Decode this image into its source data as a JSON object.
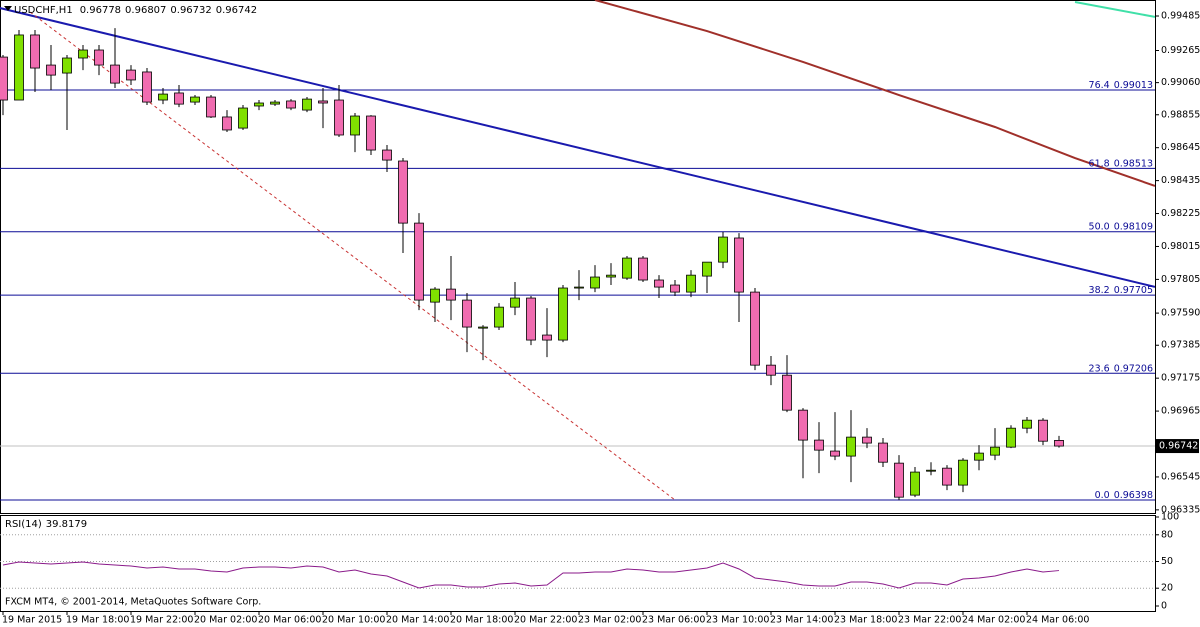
{
  "chart_data": [
    {
      "type": "candlestick",
      "title": "USDCHF,H1",
      "categories": [
        "19 Mar 2015",
        null,
        null,
        null,
        "19 Mar 18:00",
        null,
        null,
        null,
        "19 Mar 22:00",
        null,
        null,
        null,
        "20 Mar 02:00",
        null,
        null,
        null,
        "20 Mar 06:00",
        null,
        null,
        null,
        "20 Mar 10:00",
        null,
        null,
        null,
        "20 Mar 14:00",
        null,
        null,
        null,
        "20 Mar 18:00",
        null,
        null,
        null,
        "20 Mar 22:00",
        null,
        null,
        null,
        "23 Mar 02:00",
        null,
        null,
        null,
        "23 Mar 06:00",
        null,
        null,
        null,
        "23 Mar 10:00",
        null,
        null,
        null,
        "23 Mar 14:00",
        null,
        null,
        null,
        "23 Mar 18:00",
        null,
        null,
        null,
        "23 Mar 22:00",
        null,
        null,
        null,
        "24 Mar 02:00",
        null,
        null,
        null,
        "24 Mar 06:00",
        null,
        null
      ],
      "open": [
        0.99223,
        0.98949,
        0.99364,
        0.99172,
        0.99121,
        0.99217,
        0.99268,
        0.99172,
        0.9914,
        0.99128,
        0.98949,
        0.98994,
        0.98936,
        0.98968,
        0.98841,
        0.9877,
        0.98911,
        0.98923,
        0.98943,
        0.98885,
        0.98943,
        0.98949,
        0.98726,
        0.98847,
        0.9863,
        0.9856,
        0.98164,
        0.9766,
        0.97743,
        0.97673,
        0.97494,
        0.97501,
        0.97628,
        0.97686,
        0.9745,
        0.97418,
        0.9775,
        0.9775,
        0.9782,
        0.97813,
        0.97941,
        0.97801,
        0.97769,
        0.97724,
        0.97826,
        0.97915,
        0.98069,
        0.97724,
        0.97258,
        0.97194,
        0.96971,
        0.9678,
        0.9671,
        0.96678,
        0.96799,
        0.96761,
        0.96633,
        0.96429,
        0.96588,
        0.96601,
        0.96493,
        0.96652,
        0.96684,
        0.96735,
        0.96856,
        0.96907,
        0.96778
      ],
      "high": [
        0.99236,
        0.99396,
        0.99396,
        0.993,
        0.99236,
        0.993,
        0.993,
        0.99408,
        0.99172,
        0.99153,
        0.99026,
        0.99045,
        0.98981,
        0.98981,
        0.98885,
        0.98917,
        0.98949,
        0.98949,
        0.98955,
        0.98968,
        0.99026,
        0.99045,
        0.98866,
        0.98853,
        0.98662,
        0.98579,
        0.98228,
        0.97756,
        0.97954,
        0.97718,
        0.97513,
        0.97654,
        0.97788,
        0.97699,
        0.97622,
        0.97769,
        0.97864,
        0.97896,
        0.97909,
        0.97954,
        0.97954,
        0.97832,
        0.97801,
        0.97864,
        0.97915,
        0.98107,
        0.981,
        0.9775,
        0.97316,
        0.97322,
        0.96984,
        0.96895,
        0.96958,
        0.96971,
        0.96856,
        0.96793,
        0.96684,
        0.96608,
        0.96639,
        0.9662,
        0.96665,
        0.96748,
        0.96856,
        0.96875,
        0.96927,
        0.9692,
        0.96807
      ],
      "low": [
        0.98853,
        0.98949,
        0.99,
        0.99013,
        0.98758,
        0.9914,
        0.99108,
        0.99026,
        0.99045,
        0.98917,
        0.98923,
        0.98904,
        0.98917,
        0.98834,
        0.98745,
        0.98758,
        0.98885,
        0.98911,
        0.98885,
        0.98872,
        0.9877,
        0.98713,
        0.98617,
        0.98598,
        0.9849,
        0.97973,
        0.97609,
        0.97533,
        0.97545,
        0.97341,
        0.9729,
        0.97482,
        0.97577,
        0.97386,
        0.97309,
        0.97405,
        0.97673,
        0.97724,
        0.97769,
        0.97801,
        0.97788,
        0.97686,
        0.97699,
        0.97692,
        0.97718,
        0.97877,
        0.97533,
        0.97226,
        0.97131,
        0.96958,
        0.96537,
        0.96569,
        0.96652,
        0.96512,
        0.96729,
        0.96608,
        0.96397,
        0.96416,
        0.96556,
        0.96461,
        0.96448,
        0.96588,
        0.96652,
        0.96729,
        0.96824,
        0.96748,
        0.96732
      ],
      "close": [
        0.98949,
        0.99364,
        0.99153,
        0.99108,
        0.99217,
        0.99268,
        0.99172,
        0.99057,
        0.99077,
        0.98936,
        0.98987,
        0.98923,
        0.98968,
        0.98841,
        0.98758,
        0.98898,
        0.9893,
        0.98936,
        0.98898,
        0.98955,
        0.9893,
        0.98726,
        0.98847,
        0.9863,
        0.98566,
        0.98164,
        0.97673,
        0.97743,
        0.97673,
        0.97501,
        0.97501,
        0.97628,
        0.97686,
        0.97418,
        0.97418,
        0.9775,
        0.97756,
        0.9782,
        0.97832,
        0.97941,
        0.97801,
        0.97756,
        0.97724,
        0.97832,
        0.97915,
        0.98075,
        0.97724,
        0.97258,
        0.97194,
        0.96971,
        0.9678,
        0.96716,
        0.96678,
        0.96799,
        0.96761,
        0.96639,
        0.96416,
        0.96576,
        0.96588,
        0.96493,
        0.96652,
        0.96697,
        0.96735,
        0.96856,
        0.96907,
        0.96773,
        0.96742
      ],
      "up_color": "#80e000",
      "down_color": "#f06cb0",
      "wick_color": "#000000",
      "ylim": [
        0.96315,
        0.99587
      ],
      "yticks": [
        0.99485,
        0.99265,
        {
          "value": 0.9906,
          "label": "0.99060"
        },
        0.98855,
        0.98645,
        0.98435,
        0.98225,
        0.98015,
        0.97805,
        {
          "value": 0.9759,
          "label": "0.97590"
        },
        0.97385,
        0.97175,
        0.96965,
        0.96545,
        0.96335
      ],
      "fib_color": "#0c0c96",
      "fib_levels": [
        {
          "label": "76.4",
          "value": 0.99013
        },
        {
          "label": "61.8",
          "value": 0.98513
        },
        {
          "label": "50.0",
          "value": 0.98109
        },
        {
          "label": "38.2",
          "value": 0.97705
        },
        {
          "label": "23.6",
          "value": 0.97206
        },
        {
          "label": "0.0",
          "value": 0.96398
        }
      ],
      "overlays": [
        {
          "color": "#1a1aae",
          "x": [
            -0.2,
            72
          ],
          "values": [
            0.99536,
            0.97757
          ],
          "dashed": false
        },
        {
          "color": "#a0302a",
          "x": [
            37,
            44,
            50,
            56,
            62,
            67,
            72
          ],
          "values": [
            0.99587,
            0.99389,
            0.99192,
            0.98981,
            0.98777,
            0.98579,
            0.98401
          ],
          "dashed": false
        },
        {
          "color": "#40e0a8",
          "x": [
            67,
            72
          ],
          "values": [
            0.99574,
            0.99479
          ],
          "dashed": false
        },
        {
          "color": "#c83232",
          "x": [
            1.7,
            42
          ],
          "values": [
            0.9951,
            0.96398
          ],
          "dashed": true
        }
      ],
      "price_line_color": "#c0c0c0"
    },
    {
      "type": "line",
      "title": "RSI(14)",
      "color": "#8a1a8a",
      "values": [
        46.1,
        49.4,
        48.3,
        47.2,
        48.3,
        49.4,
        47.2,
        46.1,
        44.9,
        42.7,
        43.8,
        41.6,
        41.6,
        39.3,
        38.2,
        42.7,
        43.8,
        43.8,
        42.7,
        44.9,
        43.8,
        38.2,
        40.4,
        36.0,
        33.7,
        27.0,
        20.2,
        23.6,
        23.6,
        21.3,
        21.3,
        24.7,
        25.8,
        22.5,
        23.6,
        37.1,
        37.1,
        38.2,
        38.2,
        41.6,
        40.4,
        38.2,
        38.2,
        40.4,
        42.7,
        48.3,
        41.6,
        31.5,
        29.2,
        27.0,
        23.6,
        22.5,
        22.5,
        27.0,
        27.0,
        24.7,
        20.2,
        25.8,
        25.8,
        23.6,
        30.3,
        31.5,
        33.7,
        38.2,
        41.6,
        38.2,
        39.8179
      ],
      "ylim": [
        0,
        100
      ],
      "yticks": [
        0,
        20,
        50,
        80,
        100
      ],
      "levels": [
        20,
        50,
        80
      ],
      "watermark": "FXCM MT4, © 2001-2014, MetaQuotes Software Corp."
    }
  ]
}
